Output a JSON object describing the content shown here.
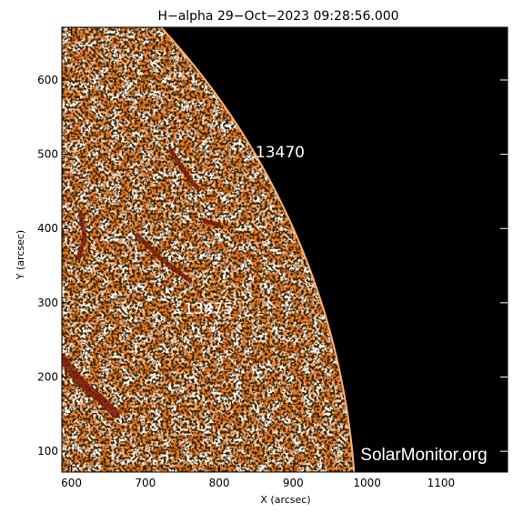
{
  "chart_data": {
    "type": "heatmap",
    "title": "H−alpha 29−Oct−2023 09:28:56.000",
    "xlabel": "X (arcsec)",
    "ylabel": "Y (arcsec)",
    "xlim": [
      587,
      1190
    ],
    "ylim": [
      72,
      671
    ],
    "xticks": [
      600,
      700,
      800,
      900,
      1000,
      1100
    ],
    "yticks": [
      100,
      200,
      300,
      400,
      500,
      600
    ],
    "solar_limb": {
      "radius_arcsec": 985,
      "center": [
        0,
        0
      ]
    },
    "active_regions": [
      {
        "label": "13470",
        "x": 849,
        "y": 496
      },
      {
        "label": "13475",
        "x": 752,
        "y": 285
      }
    ],
    "colors": {
      "sky": "#000000",
      "disk_base": "#e8782a",
      "plage": "#ffffff",
      "filament": "#7a1a05",
      "limb_edge": "#ffb070"
    },
    "watermark": "SolarMonitor.org"
  }
}
